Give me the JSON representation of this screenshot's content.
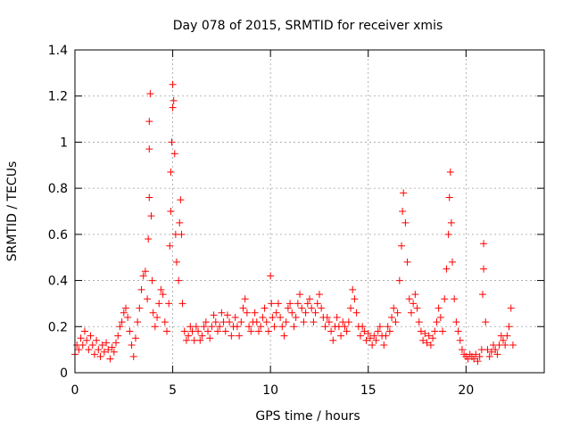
{
  "chart_data": {
    "type": "scatter",
    "title": "Day 078 of 2015, SRMTID for receiver xmis",
    "xlabel": "GPS time / hours",
    "ylabel": "SRMTID / TECUs",
    "xlim": [
      0,
      24
    ],
    "ylim": [
      0,
      1.4
    ],
    "x_ticks": [
      0,
      5,
      10,
      15,
      20
    ],
    "x_tick_labels": [
      "0",
      "5",
      "10",
      "15",
      "20"
    ],
    "y_ticks": [
      0,
      0.2,
      0.4,
      0.6,
      0.8,
      1.0,
      1.2,
      1.4
    ],
    "y_tick_labels": [
      "0",
      "0.2",
      "0.4",
      "0.6",
      "0.8",
      "1",
      "1.2",
      "1.4"
    ],
    "grid": true,
    "marker": "+",
    "series": [
      {
        "name": "SRMTID",
        "color": "#ff0000",
        "points": [
          [
            0.0,
            0.08
          ],
          [
            0.1,
            0.12
          ],
          [
            0.2,
            0.1
          ],
          [
            0.3,
            0.15
          ],
          [
            0.4,
            0.12
          ],
          [
            0.5,
            0.18
          ],
          [
            0.6,
            0.14
          ],
          [
            0.7,
            0.1
          ],
          [
            0.8,
            0.16
          ],
          [
            0.9,
            0.12
          ],
          [
            1.0,
            0.08
          ],
          [
            1.1,
            0.14
          ],
          [
            1.2,
            0.1
          ],
          [
            1.3,
            0.07
          ],
          [
            1.4,
            0.12
          ],
          [
            1.5,
            0.09
          ],
          [
            1.6,
            0.13
          ],
          [
            1.7,
            0.1
          ],
          [
            1.8,
            0.06
          ],
          [
            1.9,
            0.11
          ],
          [
            2.0,
            0.09
          ],
          [
            2.1,
            0.13
          ],
          [
            2.2,
            0.16
          ],
          [
            2.3,
            0.2
          ],
          [
            2.4,
            0.22
          ],
          [
            2.5,
            0.26
          ],
          [
            2.6,
            0.28
          ],
          [
            2.7,
            0.24
          ],
          [
            2.8,
            0.18
          ],
          [
            2.9,
            0.12
          ],
          [
            3.0,
            0.07
          ],
          [
            3.1,
            0.15
          ],
          [
            3.2,
            0.22
          ],
          [
            3.3,
            0.28
          ],
          [
            3.4,
            0.36
          ],
          [
            3.5,
            0.42
          ],
          [
            3.6,
            0.44
          ],
          [
            3.7,
            0.32
          ],
          [
            3.75,
            0.58
          ],
          [
            3.8,
            0.76
          ],
          [
            3.8,
            0.97
          ],
          [
            3.8,
            1.09
          ],
          [
            3.85,
            1.21
          ],
          [
            3.9,
            0.68
          ],
          [
            3.95,
            0.4
          ],
          [
            4.0,
            0.26
          ],
          [
            4.1,
            0.2
          ],
          [
            4.2,
            0.24
          ],
          [
            4.3,
            0.3
          ],
          [
            4.4,
            0.36
          ],
          [
            4.5,
            0.34
          ],
          [
            4.6,
            0.22
          ],
          [
            4.7,
            0.18
          ],
          [
            4.8,
            0.3
          ],
          [
            4.85,
            0.55
          ],
          [
            4.9,
            0.7
          ],
          [
            4.9,
            0.87
          ],
          [
            4.95,
            1.0
          ],
          [
            5.0,
            1.15
          ],
          [
            5.0,
            1.25
          ],
          [
            5.05,
            1.18
          ],
          [
            5.1,
            0.95
          ],
          [
            5.15,
            0.6
          ],
          [
            5.2,
            0.48
          ],
          [
            5.3,
            0.4
          ],
          [
            5.35,
            0.65
          ],
          [
            5.4,
            0.75
          ],
          [
            5.45,
            0.6
          ],
          [
            5.5,
            0.3
          ],
          [
            5.6,
            0.18
          ],
          [
            5.7,
            0.14
          ],
          [
            5.8,
            0.16
          ],
          [
            5.9,
            0.2
          ],
          [
            6.0,
            0.18
          ],
          [
            6.1,
            0.14
          ],
          [
            6.2,
            0.2
          ],
          [
            6.3,
            0.18
          ],
          [
            6.4,
            0.14
          ],
          [
            6.5,
            0.16
          ],
          [
            6.6,
            0.2
          ],
          [
            6.7,
            0.22
          ],
          [
            6.8,
            0.18
          ],
          [
            6.9,
            0.15
          ],
          [
            7.0,
            0.2
          ],
          [
            7.1,
            0.25
          ],
          [
            7.2,
            0.22
          ],
          [
            7.3,
            0.18
          ],
          [
            7.4,
            0.2
          ],
          [
            7.5,
            0.26
          ],
          [
            7.6,
            0.22
          ],
          [
            7.7,
            0.18
          ],
          [
            7.8,
            0.25
          ],
          [
            7.9,
            0.22
          ],
          [
            8.0,
            0.16
          ],
          [
            8.1,
            0.2
          ],
          [
            8.2,
            0.24
          ],
          [
            8.3,
            0.2
          ],
          [
            8.4,
            0.16
          ],
          [
            8.5,
            0.22
          ],
          [
            8.6,
            0.28
          ],
          [
            8.7,
            0.32
          ],
          [
            8.8,
            0.26
          ],
          [
            8.9,
            0.2
          ],
          [
            9.0,
            0.18
          ],
          [
            9.1,
            0.22
          ],
          [
            9.2,
            0.26
          ],
          [
            9.3,
            0.22
          ],
          [
            9.4,
            0.18
          ],
          [
            9.5,
            0.2
          ],
          [
            9.6,
            0.24
          ],
          [
            9.7,
            0.28
          ],
          [
            9.8,
            0.22
          ],
          [
            9.9,
            0.18
          ],
          [
            10.0,
            0.42
          ],
          [
            10.05,
            0.3
          ],
          [
            10.1,
            0.24
          ],
          [
            10.2,
            0.2
          ],
          [
            10.3,
            0.26
          ],
          [
            10.4,
            0.3
          ],
          [
            10.5,
            0.24
          ],
          [
            10.6,
            0.2
          ],
          [
            10.7,
            0.16
          ],
          [
            10.8,
            0.22
          ],
          [
            10.9,
            0.28
          ],
          [
            11.0,
            0.3
          ],
          [
            11.1,
            0.26
          ],
          [
            11.2,
            0.2
          ],
          [
            11.3,
            0.24
          ],
          [
            11.4,
            0.3
          ],
          [
            11.5,
            0.34
          ],
          [
            11.6,
            0.28
          ],
          [
            11.7,
            0.22
          ],
          [
            11.8,
            0.26
          ],
          [
            11.9,
            0.3
          ],
          [
            12.0,
            0.32
          ],
          [
            12.1,
            0.28
          ],
          [
            12.2,
            0.22
          ],
          [
            12.3,
            0.26
          ],
          [
            12.4,
            0.3
          ],
          [
            12.5,
            0.34
          ],
          [
            12.6,
            0.28
          ],
          [
            12.7,
            0.24
          ],
          [
            12.8,
            0.2
          ],
          [
            12.9,
            0.24
          ],
          [
            13.0,
            0.22
          ],
          [
            13.1,
            0.18
          ],
          [
            13.2,
            0.14
          ],
          [
            13.3,
            0.2
          ],
          [
            13.4,
            0.24
          ],
          [
            13.5,
            0.2
          ],
          [
            13.6,
            0.16
          ],
          [
            13.7,
            0.22
          ],
          [
            13.8,
            0.2
          ],
          [
            13.9,
            0.18
          ],
          [
            14.0,
            0.22
          ],
          [
            14.1,
            0.28
          ],
          [
            14.2,
            0.36
          ],
          [
            14.3,
            0.32
          ],
          [
            14.4,
            0.26
          ],
          [
            14.5,
            0.2
          ],
          [
            14.6,
            0.16
          ],
          [
            14.7,
            0.2
          ],
          [
            14.8,
            0.18
          ],
          [
            14.9,
            0.14
          ],
          [
            15.0,
            0.17
          ],
          [
            15.1,
            0.15
          ],
          [
            15.2,
            0.12
          ],
          [
            15.3,
            0.16
          ],
          [
            15.4,
            0.14
          ],
          [
            15.5,
            0.18
          ],
          [
            15.6,
            0.2
          ],
          [
            15.7,
            0.16
          ],
          [
            15.8,
            0.12
          ],
          [
            15.9,
            0.16
          ],
          [
            16.0,
            0.2
          ],
          [
            16.1,
            0.18
          ],
          [
            16.2,
            0.24
          ],
          [
            16.3,
            0.28
          ],
          [
            16.4,
            0.22
          ],
          [
            16.5,
            0.26
          ],
          [
            16.6,
            0.4
          ],
          [
            16.7,
            0.55
          ],
          [
            16.75,
            0.7
          ],
          [
            16.8,
            0.78
          ],
          [
            16.9,
            0.65
          ],
          [
            17.0,
            0.48
          ],
          [
            17.1,
            0.32
          ],
          [
            17.2,
            0.26
          ],
          [
            17.3,
            0.3
          ],
          [
            17.4,
            0.34
          ],
          [
            17.5,
            0.28
          ],
          [
            17.6,
            0.22
          ],
          [
            17.7,
            0.18
          ],
          [
            17.8,
            0.14
          ],
          [
            17.9,
            0.17
          ],
          [
            18.0,
            0.13
          ],
          [
            18.1,
            0.16
          ],
          [
            18.2,
            0.12
          ],
          [
            18.3,
            0.15
          ],
          [
            18.4,
            0.18
          ],
          [
            18.5,
            0.22
          ],
          [
            18.6,
            0.28
          ],
          [
            18.7,
            0.24
          ],
          [
            18.8,
            0.18
          ],
          [
            18.9,
            0.32
          ],
          [
            19.0,
            0.45
          ],
          [
            19.1,
            0.6
          ],
          [
            19.15,
            0.76
          ],
          [
            19.2,
            0.87
          ],
          [
            19.25,
            0.65
          ],
          [
            19.3,
            0.48
          ],
          [
            19.4,
            0.32
          ],
          [
            19.5,
            0.22
          ],
          [
            19.6,
            0.18
          ],
          [
            19.7,
            0.14
          ],
          [
            19.8,
            0.1
          ],
          [
            19.9,
            0.08
          ],
          [
            20.0,
            0.07
          ],
          [
            20.1,
            0.06
          ],
          [
            20.2,
            0.08
          ],
          [
            20.3,
            0.07
          ],
          [
            20.4,
            0.06
          ],
          [
            20.5,
            0.08
          ],
          [
            20.6,
            0.05
          ],
          [
            20.7,
            0.07
          ],
          [
            20.8,
            0.1
          ],
          [
            20.85,
            0.34
          ],
          [
            20.9,
            0.45
          ],
          [
            20.9,
            0.56
          ],
          [
            21.0,
            0.22
          ],
          [
            21.1,
            0.1
          ],
          [
            21.2,
            0.07
          ],
          [
            21.3,
            0.09
          ],
          [
            21.4,
            0.12
          ],
          [
            21.5,
            0.1
          ],
          [
            21.6,
            0.08
          ],
          [
            21.7,
            0.12
          ],
          [
            21.8,
            0.16
          ],
          [
            21.9,
            0.14
          ],
          [
            22.0,
            0.12
          ],
          [
            22.1,
            0.16
          ],
          [
            22.2,
            0.2
          ],
          [
            22.3,
            0.28
          ],
          [
            22.4,
            0.12
          ]
        ]
      }
    ]
  }
}
